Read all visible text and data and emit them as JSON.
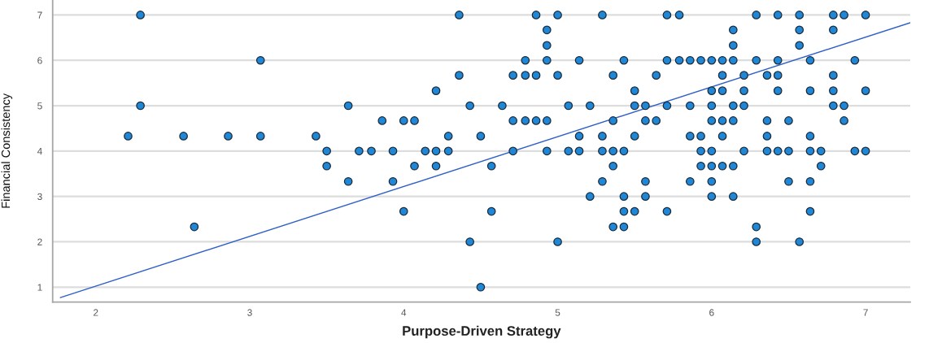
{
  "chart_data": {
    "type": "scatter",
    "xlabel": "Purpose-Driven Strategy",
    "ylabel": "Financial Consistency",
    "xlim": [
      1.72,
      7.29
    ],
    "ylim": [
      0.67,
      7.33
    ],
    "xticks": [
      2,
      3,
      4,
      5,
      6,
      7
    ],
    "yticks": [
      1,
      2,
      3,
      4,
      5,
      6,
      7
    ],
    "grid": "y",
    "series": [
      {
        "color": "#1f87d6",
        "marker": "circle",
        "x": [
          2.29,
          4.36,
          4.86,
          5.0,
          5.29,
          5.71,
          5.79,
          6.29,
          6.43,
          6.57,
          6.79,
          6.86,
          7.0,
          4.93,
          6.14,
          6.57,
          6.79,
          4.93,
          6.14,
          6.57,
          3.07,
          4.79,
          4.93,
          5.14,
          5.43,
          5.71,
          5.79,
          5.86,
          5.93,
          6.0,
          6.07,
          6.14,
          6.29,
          6.43,
          6.64,
          6.93,
          4.36,
          4.71,
          4.79,
          4.86,
          5.0,
          5.36,
          5.64,
          6.07,
          6.21,
          6.36,
          6.43,
          6.79,
          4.21,
          5.5,
          6.0,
          6.07,
          6.21,
          6.43,
          6.64,
          6.79,
          7.0,
          2.29,
          3.64,
          4.43,
          4.64,
          5.07,
          5.21,
          5.5,
          5.57,
          5.71,
          5.86,
          6.0,
          6.14,
          6.21,
          6.79,
          6.86,
          3.86,
          4.0,
          4.07,
          4.71,
          4.79,
          4.86,
          4.93,
          5.36,
          5.57,
          5.64,
          6.0,
          6.07,
          6.14,
          6.36,
          6.5,
          6.86,
          2.21,
          2.57,
          2.86,
          3.07,
          3.43,
          4.29,
          4.5,
          5.14,
          5.29,
          5.5,
          5.86,
          5.93,
          6.07,
          6.36,
          6.64,
          3.5,
          3.71,
          3.79,
          3.93,
          4.14,
          4.21,
          4.29,
          4.71,
          4.93,
          5.07,
          5.14,
          5.29,
          5.36,
          5.43,
          5.93,
          6.0,
          6.21,
          6.36,
          6.43,
          6.5,
          6.64,
          6.71,
          6.93,
          7.0,
          3.5,
          4.07,
          4.21,
          4.57,
          5.36,
          5.93,
          6.0,
          6.07,
          6.14,
          6.71,
          3.64,
          3.93,
          5.29,
          5.57,
          5.86,
          6.0,
          6.5,
          6.64,
          5.21,
          5.43,
          5.57,
          6.0,
          6.14,
          4.0,
          4.57,
          5.43,
          5.5,
          5.71,
          6.64,
          2.64,
          5.36,
          5.43,
          6.29,
          4.43,
          5.0,
          6.29,
          6.57,
          4.5
        ],
        "values": [
          7,
          7,
          7,
          7,
          7,
          7,
          7,
          7,
          7,
          7,
          7,
          7,
          7,
          6.67,
          6.67,
          6.67,
          6.67,
          6.33,
          6.33,
          6.33,
          6,
          6,
          6,
          6,
          6,
          6,
          6,
          6,
          6,
          6,
          6,
          6,
          6,
          6,
          6,
          6,
          5.67,
          5.67,
          5.67,
          5.67,
          5.67,
          5.67,
          5.67,
          5.67,
          5.67,
          5.67,
          5.67,
          5.67,
          5.33,
          5.33,
          5.33,
          5.33,
          5.33,
          5.33,
          5.33,
          5.33,
          5.33,
          5,
          5,
          5,
          5,
          5,
          5,
          5,
          5,
          5,
          5,
          5,
          5,
          5,
          5,
          5,
          4.67,
          4.67,
          4.67,
          4.67,
          4.67,
          4.67,
          4.67,
          4.67,
          4.67,
          4.67,
          4.67,
          4.67,
          4.67,
          4.67,
          4.67,
          4.67,
          4.33,
          4.33,
          4.33,
          4.33,
          4.33,
          4.33,
          4.33,
          4.33,
          4.33,
          4.33,
          4.33,
          4.33,
          4.33,
          4.33,
          4.33,
          4,
          4,
          4,
          4,
          4,
          4,
          4,
          4,
          4,
          4,
          4,
          4,
          4,
          4,
          4,
          4,
          4,
          4,
          4,
          4,
          4,
          4,
          4,
          4,
          3.67,
          3.67,
          3.67,
          3.67,
          3.67,
          3.67,
          3.67,
          3.67,
          3.67,
          3.67,
          3.33,
          3.33,
          3.33,
          3.33,
          3.33,
          3.33,
          3.33,
          3.33,
          3,
          3,
          3,
          3,
          3,
          2.67,
          2.67,
          2.67,
          2.67,
          2.67,
          2.67,
          2.33,
          2.33,
          2.33,
          2.33,
          2,
          2,
          2,
          2,
          1
        ]
      },
      {
        "type": "line",
        "color": "#2f5fc8",
        "line_style": "solid",
        "x": [
          1.77,
          7.29
        ],
        "values": [
          0.77,
          6.83
        ]
      }
    ]
  }
}
